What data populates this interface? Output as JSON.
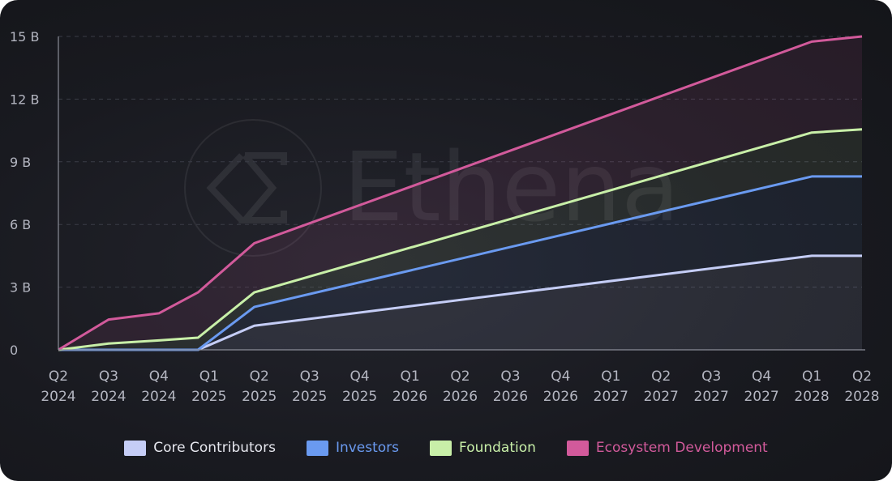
{
  "watermark": {
    "text": "Ethena",
    "logo": "ethena-sigma-logo"
  },
  "colors": {
    "background": "#191a20",
    "axis": "#8a8d98",
    "grid": "#3a3c46",
    "ticks": "#b4b6c1"
  },
  "chart_data": {
    "type": "area",
    "stacked": true,
    "categories": [
      "Q2 2024",
      "Q3 2024",
      "Q4 2024",
      "Q1 2025",
      "Q2 2025",
      "Q3 2025",
      "Q4 2025",
      "Q1 2026",
      "Q2 2026",
      "Q3 2026",
      "Q4 2026",
      "Q1 2027",
      "Q2 2027",
      "Q3 2027",
      "Q4 2027",
      "Q1 2028",
      "Q2 2028"
    ],
    "x_tick_lines": [
      [
        "Q2",
        "2024"
      ],
      [
        "Q3",
        "2024"
      ],
      [
        "Q4",
        "2024"
      ],
      [
        "Q1",
        "2025"
      ],
      [
        "Q2",
        "2025"
      ],
      [
        "Q3",
        "2025"
      ],
      [
        "Q4",
        "2025"
      ],
      [
        "Q1",
        "2026"
      ],
      [
        "Q2",
        "2026"
      ],
      [
        "Q3",
        "2026"
      ],
      [
        "Q4",
        "2026"
      ],
      [
        "Q1",
        "2027"
      ],
      [
        "Q2",
        "2027"
      ],
      [
        "Q3",
        "2027"
      ],
      [
        "Q4",
        "2027"
      ],
      [
        "Q1",
        "2028"
      ],
      [
        "Q2",
        "2028"
      ]
    ],
    "x_points": [
      0,
      1,
      2,
      3,
      4,
      5,
      6,
      7,
      8,
      9,
      10,
      11,
      12,
      13,
      14,
      15,
      16
    ],
    "series": [
      {
        "name": "Core Contributors",
        "color": "#c5cdf6",
        "x": [
          0,
          1,
          2,
          2.78,
          3.9,
          15.0,
          16.0
        ],
        "cumulative": [
          0,
          0,
          0,
          0,
          1.15,
          4.5,
          4.5
        ]
      },
      {
        "name": "Investors",
        "color": "#6a9af0",
        "x": [
          0,
          1,
          2,
          2.78,
          3.9,
          15.0,
          16.0
        ],
        "cumulative": [
          0,
          0,
          0,
          0,
          2.05,
          8.3,
          8.3
        ]
      },
      {
        "name": "Foundation",
        "color": "#c8efa8",
        "x": [
          0,
          1,
          2,
          2.78,
          3.9,
          15.0,
          16.0
        ],
        "cumulative": [
          0,
          0.3,
          0.45,
          0.58,
          2.75,
          10.4,
          10.55
        ]
      },
      {
        "name": "Ecosystem Development",
        "color": "#d25a9b",
        "x": [
          0,
          1,
          2,
          2.78,
          3.9,
          15.0,
          16.0
        ],
        "cumulative": [
          0,
          1.45,
          1.75,
          2.75,
          5.1,
          14.75,
          15.0
        ]
      }
    ],
    "y_ticks": [
      0,
      3,
      6,
      9,
      12,
      15
    ],
    "y_tick_labels": [
      "0",
      "3 B",
      "6 B",
      "9 B",
      "12 B",
      "15 B"
    ],
    "ylim": [
      0,
      15
    ],
    "grid": true,
    "legend_position": "bottom-center"
  }
}
